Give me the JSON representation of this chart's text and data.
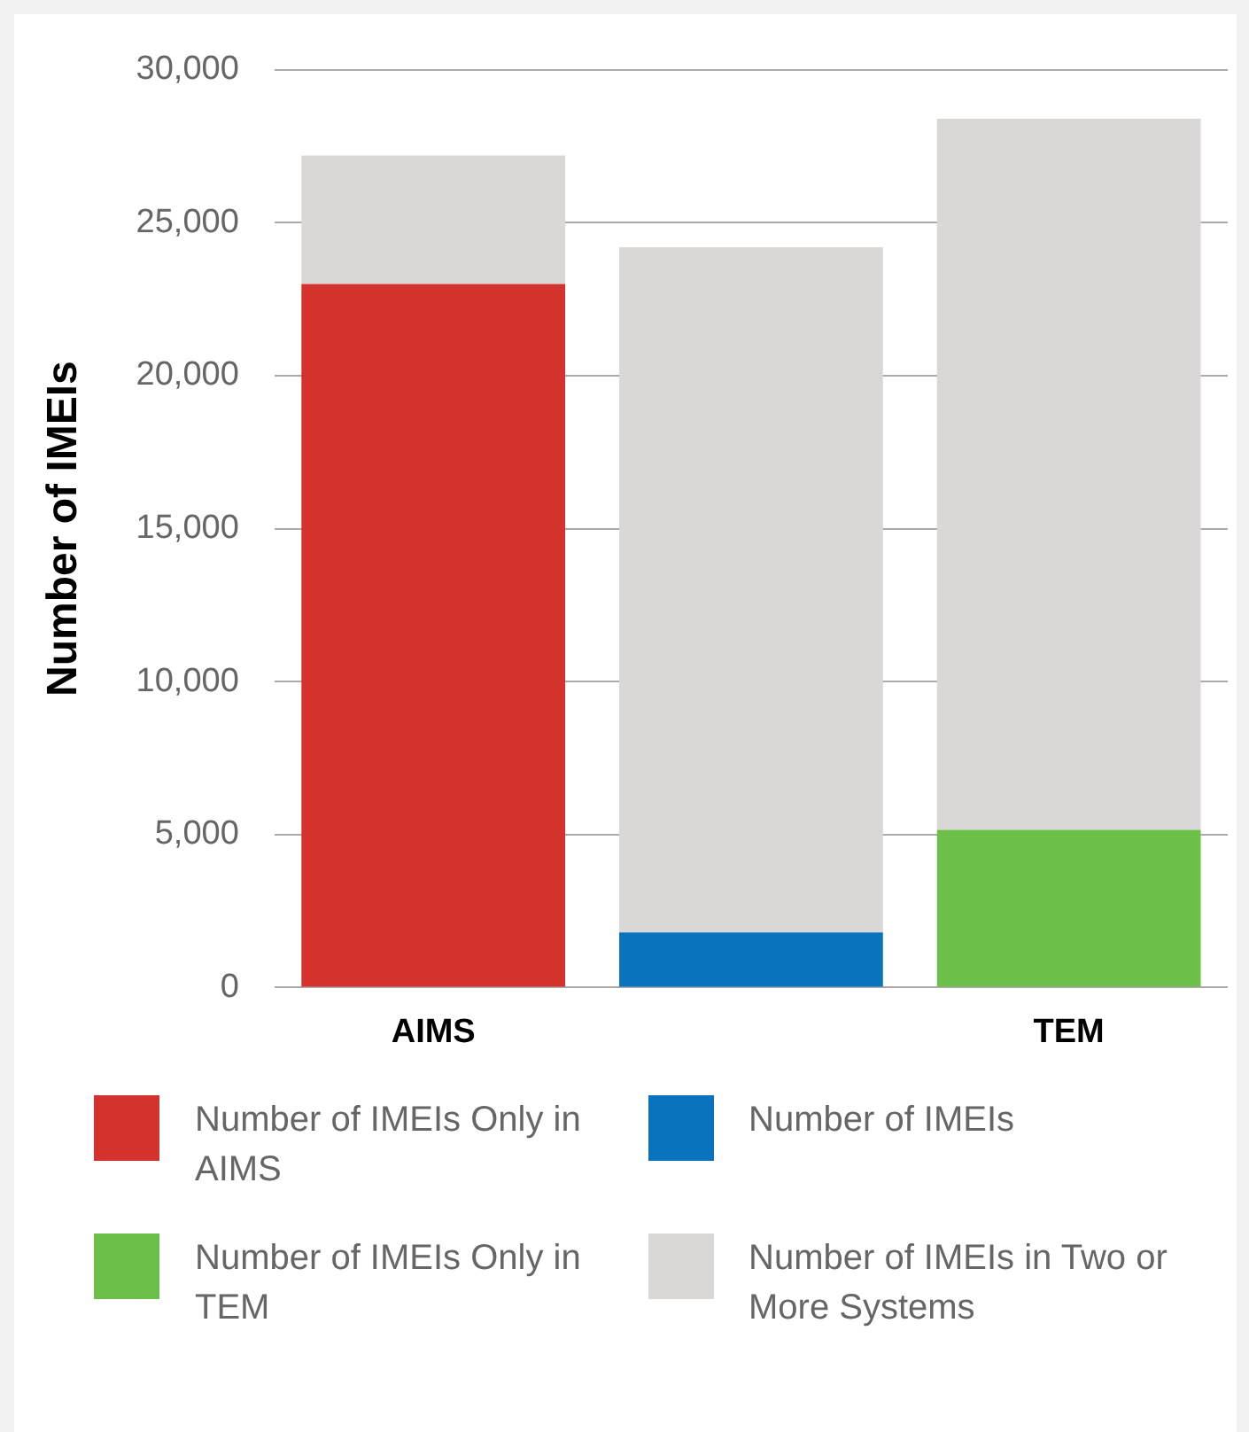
{
  "chart_data": {
    "type": "bar",
    "stacked": true,
    "ylabel": "Number of IMEIs",
    "categories": [
      "AIMS",
      null,
      "TEM"
    ],
    "series": [
      {
        "name": "Number of IMEIs Only in AIMS",
        "color": "#d4322c",
        "values": [
          23000,
          0,
          0
        ]
      },
      {
        "name": "Number of IMEIs",
        "color": "#0a73bd",
        "values": [
          0,
          1800,
          0
        ]
      },
      {
        "name": "Number of IMEIs Only in TEM",
        "color": "#6cc04a",
        "values": [
          0,
          0,
          5150
        ]
      },
      {
        "name": "Number of IMEIs in Two or More Systems",
        "color": "#d9d8d7",
        "values": [
          4200,
          22400,
          23250
        ]
      }
    ],
    "ylim": [
      0,
      30000
    ],
    "yticks": [
      {
        "value": 0,
        "label": "0"
      },
      {
        "value": 5000,
        "label": "5,000"
      },
      {
        "value": 10000,
        "label": "10,000"
      },
      {
        "value": 15000,
        "label": "15,000"
      },
      {
        "value": 20000,
        "label": "20,000"
      },
      {
        "value": 25000,
        "label": "25,000"
      },
      {
        "value": 30000,
        "label": "30,000"
      }
    ],
    "grid": "y",
    "legend": "bottom"
  }
}
